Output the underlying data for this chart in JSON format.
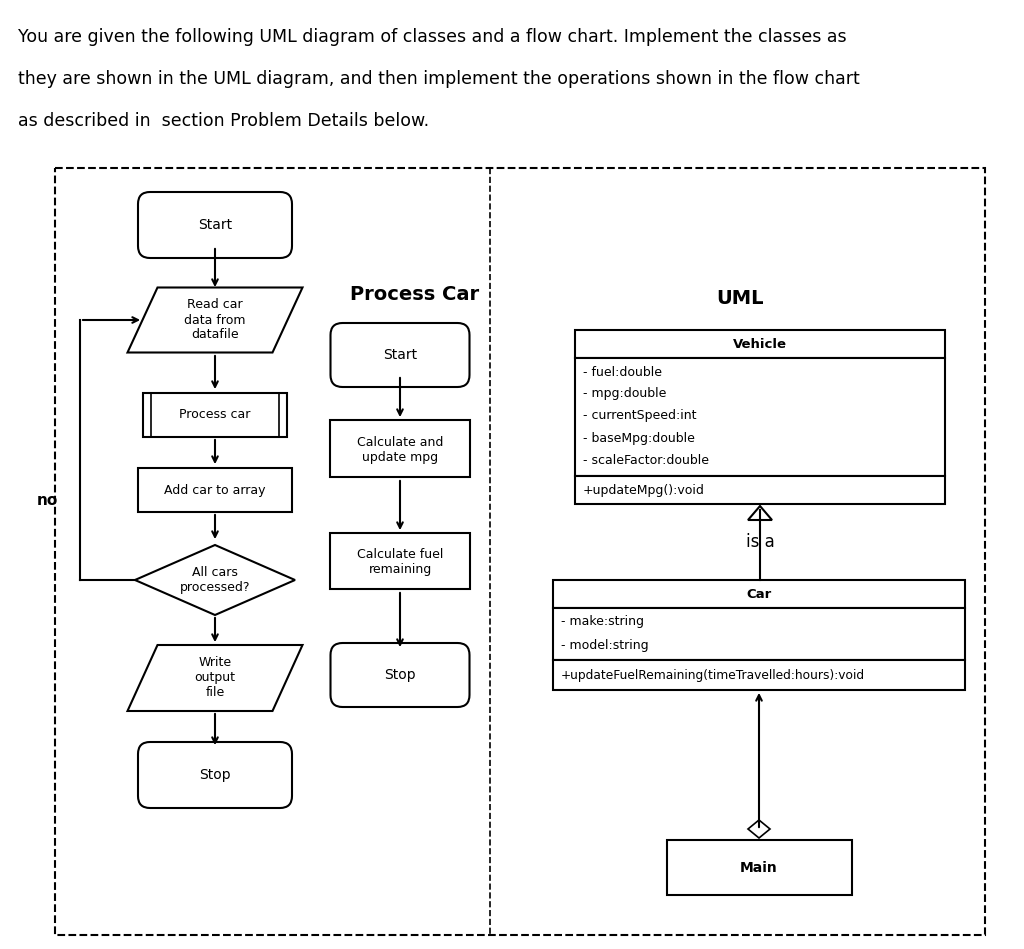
{
  "title_lines": [
    "You are given the following UML diagram of classes and a flow chart. Implement the classes as",
    "they are shown in the UML diagram, and then implement the operations shown in the flow chart",
    "as described in  section Problem Details below."
  ],
  "bg_color": "#ffffff",
  "text_color": "#000000",
  "uml_vehicle_attrs": [
    "- fuel:double",
    "- mpg:double",
    "- currentSpeed:int",
    "- baseMpg:double",
    "- scaleFactor:double"
  ],
  "uml_vehicle_methods": [
    "+updateMpg():void"
  ],
  "uml_car_attrs": [
    "- make:string",
    "- model:string"
  ],
  "uml_car_methods": [
    "+updateFuelRemaining(timeTravelled:hours):void"
  ]
}
